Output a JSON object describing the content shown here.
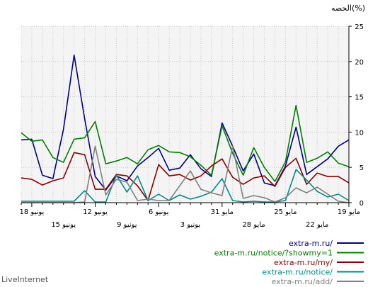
{
  "brand": "LiveInternet",
  "chart_data": {
    "type": "line",
    "ylabel": "الحصه(%)",
    "ylim": [
      0,
      25
    ],
    "yticks": [
      0,
      5,
      10,
      15,
      20,
      25
    ],
    "y_axis_side": "right",
    "x_direction": "right-to-left",
    "xlim": [
      1,
      32
    ],
    "grid": true,
    "legend_placement": "bottom-right",
    "x_labels_upper": [
      {
        "x": 1,
        "label": "19 مايو"
      },
      {
        "x": 7,
        "label": "25 مايو"
      },
      {
        "x": 13,
        "label": "31 مايو"
      },
      {
        "x": 19,
        "label": "6 يونيو"
      },
      {
        "x": 25,
        "label": "12 يونيو"
      },
      {
        "x": 31,
        "label": "18 يونيو"
      }
    ],
    "x_labels_lower": [
      {
        "x": 4,
        "label": "22 مايو"
      },
      {
        "x": 10,
        "label": "28 مايو"
      },
      {
        "x": 16,
        "label": "3 يونيو"
      },
      {
        "x": 22,
        "label": "9 يونيو"
      },
      {
        "x": 28,
        "label": "15 يونيو"
      }
    ],
    "series": [
      {
        "name": "extra-m.ru/",
        "color": "#00008b",
        "values": [
          8.9,
          8.0,
          6.2,
          5.1,
          4.0,
          10.7,
          5.2,
          2.4,
          2.8,
          6.9,
          4.5,
          8.0,
          11.3,
          3.7,
          4.8,
          6.8,
          4.9,
          4.6,
          7.7,
          6.4,
          5.2,
          3.1,
          3.8,
          1.8,
          3.7,
          11.9,
          20.9,
          10.4,
          3.4,
          3.9,
          9.0,
          8.9
        ]
      },
      {
        "name": "extra-m.ru/notice/?showmy=1",
        "color": "#008000",
        "values": [
          5.1,
          5.6,
          7.2,
          6.3,
          5.7,
          13.8,
          5.8,
          3.0,
          5.0,
          7.8,
          3.9,
          7.0,
          10.9,
          3.9,
          5.3,
          6.5,
          7.1,
          7.2,
          8.1,
          7.5,
          5.5,
          6.4,
          5.9,
          5.5,
          11.5,
          9.2,
          9.0,
          5.7,
          6.4,
          8.9,
          8.7,
          9.9
        ]
      },
      {
        "name": "extra-m.ru/my/",
        "color": "#8b0000",
        "values": [
          2.8,
          3.7,
          3.7,
          4.2,
          2.6,
          6.3,
          5.0,
          2.3,
          3.8,
          3.5,
          2.6,
          3.6,
          6.2,
          5.2,
          3.8,
          3.2,
          4.0,
          3.8,
          5.4,
          0.3,
          2.4,
          3.8,
          4.0,
          1.9,
          1.9,
          6.8,
          7.1,
          3.5,
          3.1,
          2.5,
          3.3,
          3.5
        ]
      },
      {
        "name": "extra-m.ru/notice/",
        "color": "#008b8b",
        "values": [
          0.3,
          1.2,
          0.8,
          1.6,
          3.2,
          4.7,
          0.3,
          0.1,
          0.1,
          0.2,
          0.1,
          0.3,
          3.4,
          1.5,
          0.9,
          0.5,
          1.1,
          0.3,
          1.2,
          0.3,
          3.8,
          1.5,
          3.9,
          0.1,
          0.1,
          1.7,
          0.2,
          0.2,
          0.2,
          0.2,
          0.2,
          0.2
        ]
      },
      {
        "name": "extra-m.ru/add/",
        "color": "#808080",
        "values": [
          0.0,
          0.2,
          1.2,
          2.2,
          1.4,
          2.1,
          0.7,
          0.1,
          0.7,
          1.0,
          0.6,
          8.0,
          1.0,
          1.4,
          1.9,
          4.5,
          2.4,
          0.3,
          0.3,
          0.5,
          0.3,
          2.9,
          3.3,
          1.1,
          8.0,
          0.1,
          0.0,
          0.0,
          0.0,
          0.0,
          0.0,
          0.0
        ]
      }
    ]
  }
}
